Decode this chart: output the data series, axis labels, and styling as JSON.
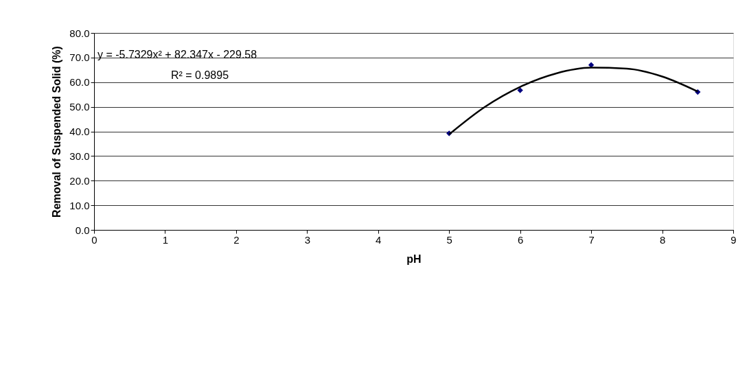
{
  "chart_data": {
    "type": "scatter",
    "xlabel": "pH",
    "ylabel": "Removal of Suspended Solid (%)",
    "xlim": [
      0,
      9
    ],
    "xticks": [
      0,
      1,
      2,
      3,
      4,
      5,
      6,
      7,
      8,
      9
    ],
    "ylim": [
      0,
      80
    ],
    "yticks": [
      {
        "value": 0,
        "label": "0.0"
      },
      {
        "value": 10,
        "label": "10.0"
      },
      {
        "value": 20,
        "label": "20.0"
      },
      {
        "value": 30,
        "label": "30.0"
      },
      {
        "value": 40,
        "label": "40.0"
      },
      {
        "value": 50,
        "label": "50.0"
      },
      {
        "value": 60,
        "label": "60.0"
      },
      {
        "value": 70,
        "label": "70.0"
      },
      {
        "value": 80,
        "label": "80.0"
      }
    ],
    "grid": "y",
    "series": [
      {
        "color": "#000080",
        "marker": "diamond",
        "x": [
          5,
          6,
          7,
          8.5
        ],
        "values": [
          39.2,
          56.7,
          67.0,
          56.0
        ]
      },
      {
        "type": "line",
        "color": "#000000",
        "marker": "none",
        "x": [
          5,
          5.5,
          6,
          6.5,
          7,
          7.5,
          8,
          8.5
        ],
        "values": [
          38.8,
          49.9,
          58.1,
          63.5,
          65.9,
          65.5,
          62.3,
          56.2
        ]
      }
    ],
    "annotations": [
      "y = -5.7329x² + 82.347x - 229.58",
      "R² = 0.9895"
    ]
  }
}
